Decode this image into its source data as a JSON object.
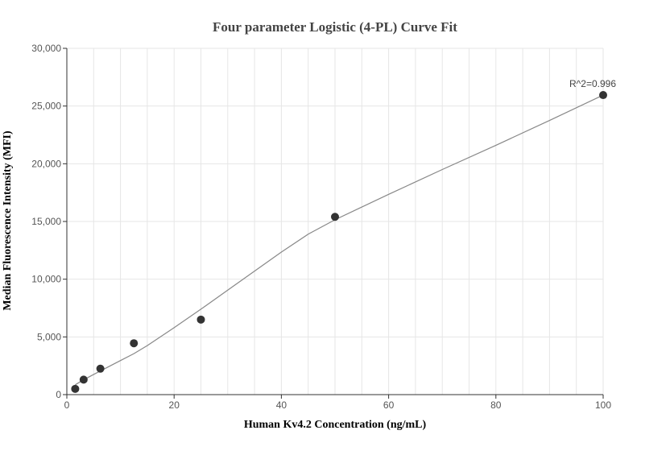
{
  "chart_data": {
    "type": "scatter",
    "title": "Four parameter Logistic (4-PL) Curve Fit",
    "xlabel": "Human Kv4.2 Concentration (ng/mL)",
    "ylabel": "Median Fluorescence Intensity (MFI)",
    "xlim": [
      0,
      100
    ],
    "ylim": [
      0,
      30000
    ],
    "x_ticks": [
      0,
      20,
      40,
      60,
      80,
      100
    ],
    "y_ticks": [
      0,
      5000,
      10000,
      15000,
      20000,
      25000,
      30000
    ],
    "x_tick_labels": [
      "0",
      "20",
      "40",
      "60",
      "80",
      "100"
    ],
    "y_tick_labels": [
      "0",
      "5,000",
      "10,000",
      "15,000",
      "20,000",
      "25,000",
      "30,000"
    ],
    "grid": true,
    "annotation": "R^2=0.996",
    "colors": {
      "points": "#333333",
      "curve": "#888888",
      "grid": "#e6e6e6"
    },
    "series": [
      {
        "type": "scatter",
        "x": [
          1.56,
          3.13,
          6.25,
          12.5,
          25,
          50,
          100
        ],
        "y": [
          500,
          1300,
          2250,
          4450,
          6500,
          15400,
          25950
        ]
      },
      {
        "type": "line",
        "x": [
          1.56,
          3,
          5,
          7.5,
          10,
          12.5,
          15,
          20,
          25,
          30,
          35,
          40,
          45,
          50,
          55,
          60,
          70,
          80,
          90,
          100
        ],
        "y": [
          850,
          1250,
          1750,
          2350,
          2950,
          3550,
          4250,
          5800,
          7400,
          9050,
          10700,
          12350,
          13900,
          15150,
          16250,
          17350,
          19500,
          21600,
          23750,
          25950
        ]
      }
    ]
  }
}
